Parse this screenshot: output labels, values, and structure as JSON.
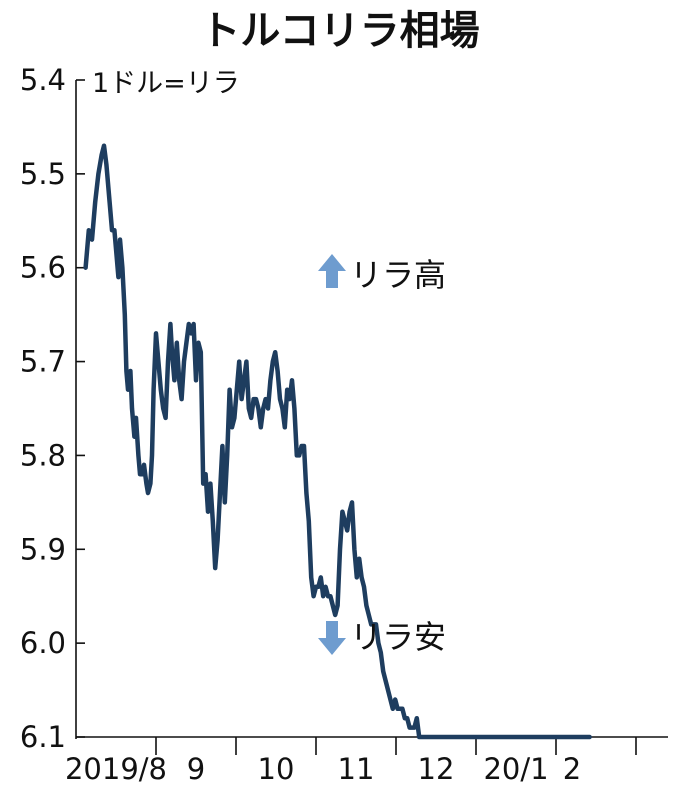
{
  "chart_data": {
    "type": "line",
    "title": "トルコリラ相場",
    "unit_label": "1ドル=リラ",
    "ylim": [
      5.4,
      6.1
    ],
    "y_inverted": true,
    "yticks": [
      "5.4",
      "5.5",
      "5.6",
      "5.7",
      "5.8",
      "5.9",
      "6.0",
      "6.1"
    ],
    "ytick_values": [
      5.4,
      5.5,
      5.6,
      5.7,
      5.8,
      5.9,
      6.0,
      6.1
    ],
    "xlim": [
      0,
      7.4
    ],
    "x_boundaries": [
      0,
      1,
      2,
      3,
      4,
      5,
      6,
      7
    ],
    "month_labels": [
      {
        "text": "2019/8",
        "x": 0.5
      },
      {
        "text": "9",
        "x": 1.5
      },
      {
        "text": "10",
        "x": 2.5
      },
      {
        "text": "11",
        "x": 3.5
      },
      {
        "text": "12",
        "x": 4.5
      },
      {
        "text": "20/1",
        "x": 5.5
      },
      {
        "text": "2",
        "x": 6.2
      }
    ],
    "annotations": {
      "up": "リラ高",
      "down": "リラ安"
    },
    "grid": false,
    "series": [
      {
        "x": [
          0.12,
          0.16,
          0.2,
          0.24,
          0.28,
          0.32,
          0.35,
          0.38,
          0.42,
          0.45,
          0.48,
          0.5,
          0.53,
          0.55,
          0.58,
          0.61,
          0.63,
          0.65,
          0.68,
          0.7,
          0.73,
          0.75,
          0.78,
          0.8,
          0.83,
          0.85,
          0.88,
          0.9,
          0.93,
          0.95,
          0.97,
          1.0,
          1.03,
          1.06,
          1.09,
          1.12,
          1.15,
          1.18,
          1.2,
          1.23,
          1.26,
          1.29,
          1.32,
          1.35,
          1.38,
          1.41,
          1.44,
          1.47,
          1.5,
          1.53,
          1.56,
          1.59,
          1.62,
          1.65,
          1.68,
          1.71,
          1.74,
          1.77,
          1.8,
          1.83,
          1.86,
          1.89,
          1.92,
          1.95,
          1.98,
          2.01,
          2.04,
          2.07,
          2.1,
          2.13,
          2.16,
          2.19,
          2.22,
          2.25,
          2.28,
          2.31,
          2.34,
          2.37,
          2.4,
          2.43,
          2.46,
          2.49,
          2.52,
          2.55,
          2.58,
          2.61,
          2.64,
          2.67,
          2.7,
          2.73,
          2.76,
          2.79,
          2.82,
          2.85,
          2.88,
          2.91,
          2.94,
          2.97,
          3.0,
          3.03,
          3.06,
          3.09,
          3.12,
          3.15,
          3.18,
          3.21,
          3.24,
          3.27,
          3.3,
          3.33,
          3.36,
          3.39,
          3.42,
          3.45,
          3.48,
          3.51,
          3.54,
          3.57,
          3.6,
          3.63,
          3.66,
          3.69,
          3.72,
          3.75,
          3.78,
          3.81,
          3.84,
          3.87,
          3.9,
          3.93,
          3.96,
          3.99,
          4.02,
          4.05,
          4.08,
          4.11,
          4.14,
          4.17,
          4.2,
          4.23,
          4.26,
          4.29,
          4.32,
          4.35,
          4.38,
          4.41,
          4.44,
          4.47,
          4.5,
          4.53,
          4.56,
          4.59,
          4.62,
          4.65,
          4.68,
          4.71,
          4.74,
          4.77,
          4.8,
          4.83,
          4.86,
          4.89,
          4.92,
          4.95,
          4.98,
          5.01,
          5.04,
          5.07,
          5.1,
          5.13,
          5.16,
          5.19,
          5.22,
          5.25,
          5.28,
          5.31,
          5.34,
          5.37,
          5.4,
          5.43,
          5.46,
          5.49,
          5.52,
          5.55,
          5.58,
          5.61,
          5.64,
          5.67,
          5.7,
          5.73,
          5.76,
          5.79,
          5.82,
          5.85,
          5.88,
          5.91,
          5.94,
          5.97,
          6.0,
          6.03,
          6.06,
          6.09,
          6.12,
          6.15,
          6.18,
          6.21,
          6.24,
          6.27,
          6.3,
          6.33,
          6.36,
          6.39,
          6.42
        ],
        "y": [
          5.6,
          5.56,
          5.57,
          5.53,
          5.5,
          5.48,
          5.47,
          5.49,
          5.53,
          5.56,
          5.56,
          5.58,
          5.61,
          5.57,
          5.6,
          5.65,
          5.71,
          5.73,
          5.71,
          5.75,
          5.78,
          5.76,
          5.8,
          5.82,
          5.82,
          5.81,
          5.83,
          5.84,
          5.83,
          5.8,
          5.73,
          5.67,
          5.7,
          5.73,
          5.75,
          5.76,
          5.7,
          5.66,
          5.69,
          5.72,
          5.68,
          5.72,
          5.74,
          5.7,
          5.68,
          5.66,
          5.67,
          5.66,
          5.72,
          5.68,
          5.69,
          5.83,
          5.82,
          5.86,
          5.83,
          5.87,
          5.92,
          5.89,
          5.84,
          5.79,
          5.85,
          5.8,
          5.73,
          5.77,
          5.76,
          5.73,
          5.7,
          5.74,
          5.72,
          5.7,
          5.75,
          5.76,
          5.74,
          5.74,
          5.75,
          5.77,
          5.75,
          5.74,
          5.75,
          5.72,
          5.7,
          5.69,
          5.71,
          5.74,
          5.75,
          5.77,
          5.73,
          5.74,
          5.72,
          5.75,
          5.8,
          5.8,
          5.79,
          5.79,
          5.84,
          5.87,
          5.93,
          5.95,
          5.94,
          5.94,
          5.93,
          5.95,
          5.94,
          5.95,
          5.95,
          5.96,
          5.97,
          5.96,
          5.9,
          5.86,
          5.87,
          5.88,
          5.86,
          5.85,
          5.9,
          5.93,
          5.91,
          5.93,
          5.94,
          5.96,
          5.97,
          5.98,
          5.98,
          5.98,
          6.0,
          6.01,
          6.03,
          6.04,
          6.05,
          6.06,
          6.07,
          6.06,
          6.07,
          6.07,
          6.07,
          6.08,
          6.08,
          6.09,
          6.09,
          6.09,
          6.08,
          6.1,
          6.1,
          6.1,
          6.1,
          6.1,
          6.1,
          6.1,
          6.1,
          6.1,
          6.1,
          6.1,
          6.1,
          6.1,
          6.1,
          6.1,
          6.1,
          6.1,
          6.1,
          6.1,
          6.1,
          6.1,
          6.1,
          6.1,
          6.1,
          6.1,
          6.1,
          6.1,
          6.1,
          6.1,
          6.1,
          6.1,
          6.1,
          6.1,
          6.1,
          6.1,
          6.1,
          6.1,
          6.1,
          6.1,
          6.1,
          6.1,
          6.1,
          6.1,
          6.1,
          6.1,
          6.1,
          6.1,
          6.1,
          6.1,
          6.1,
          6.1,
          6.1,
          6.1,
          6.1,
          6.1,
          6.1,
          6.1,
          6.1,
          6.1,
          6.1,
          6.1,
          6.1,
          6.1,
          6.1,
          6.1,
          6.1,
          6.1,
          6.1,
          6.1,
          6.1,
          6.1,
          6.1
        ]
      }
    ]
  }
}
